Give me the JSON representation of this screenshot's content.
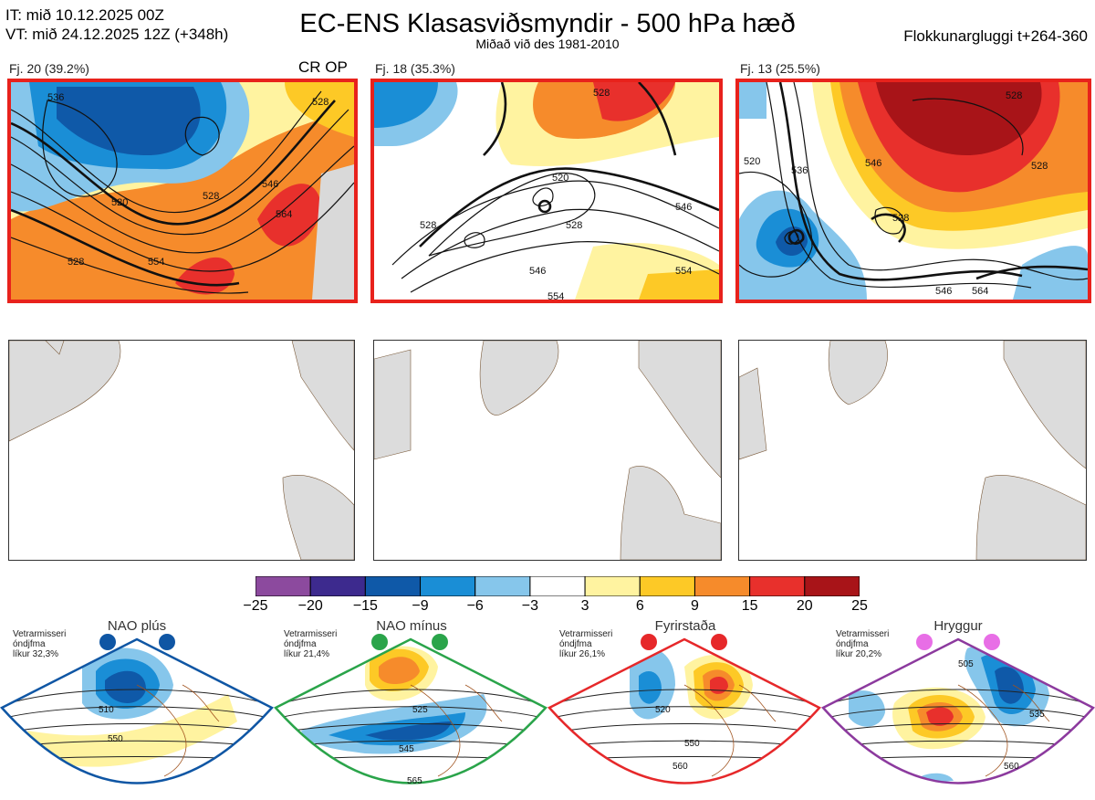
{
  "header": {
    "issue_time": "IT: mið 10.12.2025 00Z",
    "valid_time": "VT: mið 24.12.2025 12Z  (+348h)",
    "title": "EC-ENS Klasasviðsmyndir - 500 hPa hæð",
    "subtitle": "Miðað við des 1981-2010",
    "window": "Flokkunargluggi t+264-360"
  },
  "clusters": [
    {
      "label": "Fj. 20 (39.2%)",
      "tag": "CR OP",
      "contour_labels": [
        "520",
        "528",
        "536",
        "546",
        "554",
        "564",
        "528",
        "528"
      ]
    },
    {
      "label": "Fj. 18 (35.3%)",
      "tag": "",
      "contour_labels": [
        "520",
        "528",
        "546",
        "554",
        "528",
        "546",
        "554",
        "528"
      ]
    },
    {
      "label": "Fj. 13 (25.5%)",
      "tag": "",
      "contour_labels": [
        "528",
        "546",
        "520",
        "528",
        "536",
        "546",
        "564",
        "528"
      ]
    }
  ],
  "colorbar": {
    "ticks": [
      "−25",
      "−20",
      "−15",
      "−9",
      "−6",
      "−3",
      "3",
      "6",
      "9",
      "15",
      "20",
      "25"
    ],
    "colors": [
      "#8c4a9e",
      "#3d2a8e",
      "#0f59a8",
      "#1a8ed6",
      "#86c6eb",
      "#ffffff",
      "#fff3a0",
      "#fdc926",
      "#f68b2b",
      "#e8302c",
      "#a81418"
    ]
  },
  "regimes": [
    {
      "name": "NAO plús",
      "prob_line1": "Vetrarmisseri",
      "prob_line2": "óndjfma",
      "prob_line3": "líkur 32,3%",
      "color": "#0f56a4",
      "dot_color": "#0f56a4",
      "contours": [
        "510",
        "550"
      ]
    },
    {
      "name": "NAO mínus",
      "prob_line1": "Vetrarmisseri",
      "prob_line2": "óndjfma",
      "prob_line3": "líkur 21,4%",
      "color": "#2aa44a",
      "dot_color": "#2aa44a",
      "contours": [
        "525",
        "545",
        "565"
      ]
    },
    {
      "name": "Fyrirstaða",
      "prob_line1": "Vetrarmisseri",
      "prob_line2": "óndjfma",
      "prob_line3": "líkur 26,1%",
      "color": "#e6282a",
      "dot_color": "#e6282a",
      "contours": [
        "520",
        "550",
        "560"
      ]
    },
    {
      "name": "Hryggur",
      "prob_line1": "Vetrarmisseri",
      "prob_line2": "óndjfma",
      "prob_line3": "líkur 20,2%",
      "color": "#8c3a9e",
      "dot_color": "#e86ee6",
      "contours": [
        "505",
        "535",
        "560"
      ]
    }
  ]
}
